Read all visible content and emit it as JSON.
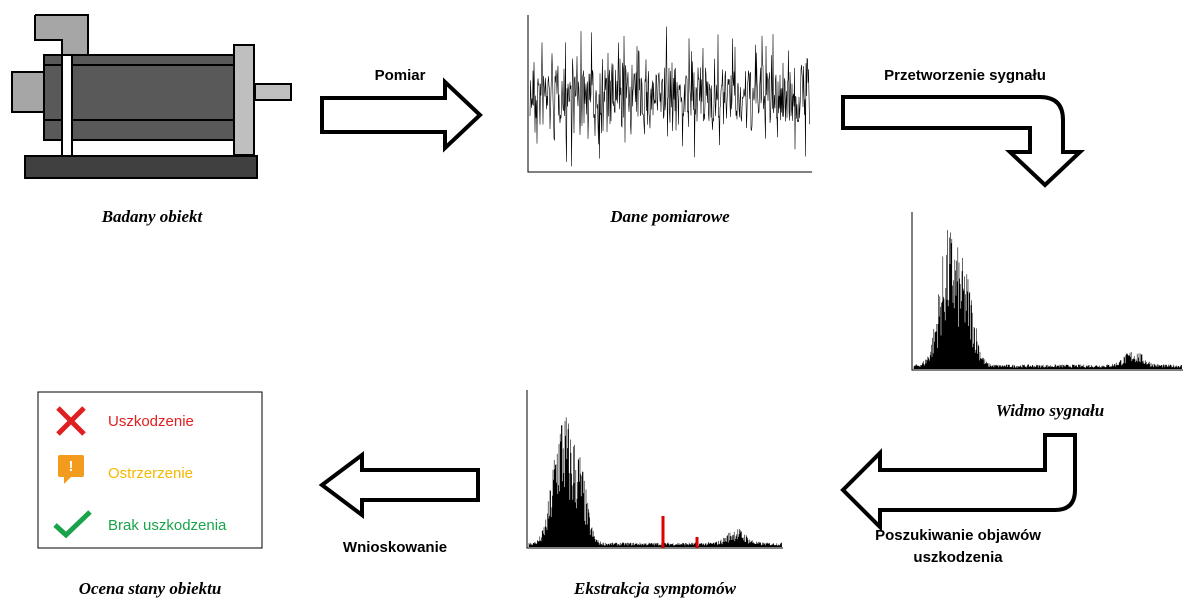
{
  "arrows": {
    "measure": "Pomiar",
    "process": "Przetworzenie sygnału",
    "search": [
      "Poszukiwanie objawów",
      "uszkodzenia"
    ],
    "infer": "Wnioskowanie"
  },
  "captions": {
    "object": "Badany obiekt",
    "data": "Dane pomiarowe",
    "spectrum": "Widmo sygnału",
    "extraction": "Ekstrakcja symptomów",
    "assessment": "Ocena stany obiektu"
  },
  "legend": {
    "fault": "Uszkodzenie",
    "warning": "Ostrzerzenie",
    "ok": "Brak uszkodzenia"
  }
}
